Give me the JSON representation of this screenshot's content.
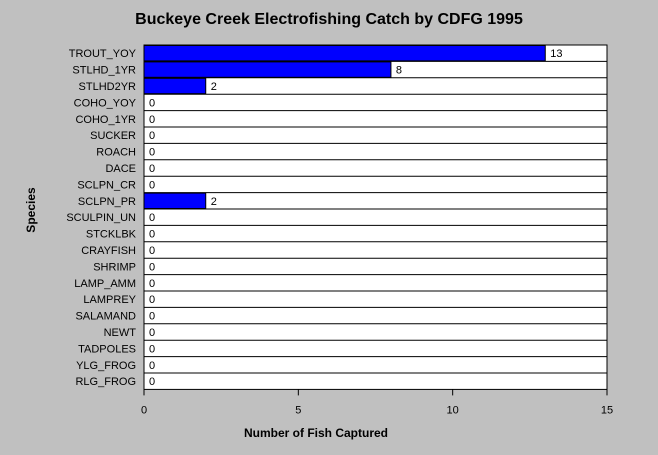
{
  "chart_data": {
    "type": "bar",
    "orientation": "horizontal",
    "title": "Buckeye Creek Electrofishing Catch by CDFG 1995",
    "xlabel": "Number of Fish Captured",
    "ylabel": "Species",
    "categories": [
      "TROUT_YOY",
      "STLHD_1YR",
      "STLHD2YR",
      "COHO_YOY",
      "COHO_1YR",
      "SUCKER",
      "ROACH",
      "DACE",
      "SCLPN_CR",
      "SCLPN_PR",
      "SCULPIN_UN",
      "STCKLBK",
      "CRAYFISH",
      "SHRIMP",
      "LAMP_AMM",
      "LAMPREY",
      "SALAMAND",
      "NEWT",
      "TADPOLES",
      "YLG_FROG",
      "RLG_FROG"
    ],
    "values": [
      13,
      8,
      2,
      0,
      0,
      0,
      0,
      0,
      0,
      2,
      0,
      0,
      0,
      0,
      0,
      0,
      0,
      0,
      0,
      0,
      0
    ],
    "xlim": [
      0,
      15
    ],
    "xticks": [
      0,
      5,
      10,
      15
    ],
    "bar_color": "#0000ff",
    "plot_background": "#ffffff",
    "page_background": "#c0c0c0",
    "grid": "horizontal row separators",
    "data_labels": true
  }
}
